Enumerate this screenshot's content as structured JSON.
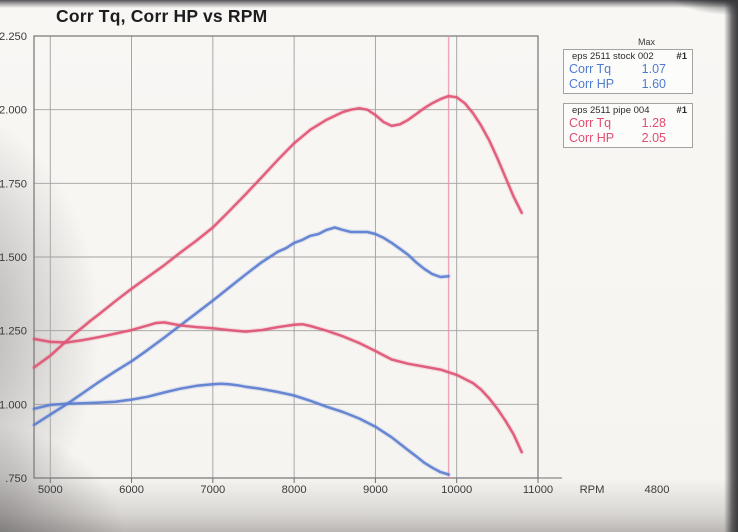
{
  "title": "Corr Tq, Corr HP vs RPM",
  "legend": {
    "max_label": "Max",
    "boxes": [
      {
        "title": "eps 2511 stock 002",
        "run": "#1",
        "color": "#4f7ccf",
        "rows": [
          {
            "label": "Corr Tq",
            "value": "1.07"
          },
          {
            "label": "Corr HP",
            "value": "1.60"
          }
        ]
      },
      {
        "title": "eps 2511 pipe 004",
        "run": "#1",
        "color": "#e04e71",
        "rows": [
          {
            "label": "Corr Tq",
            "value": "1.28"
          },
          {
            "label": "Corr HP",
            "value": "2.05"
          }
        ]
      }
    ]
  },
  "chart_data": {
    "type": "line",
    "title": "Corr Tq, Corr HP vs RPM",
    "xlabel": "RPM",
    "x_start_label": "4800",
    "xlim": [
      4800,
      11000
    ],
    "ylim": [
      0.75,
      2.25
    ],
    "grid": true,
    "grid_color": "#a0a0a0",
    "frame_color": "#7d7d7d",
    "tick_color": "#6f6f6f",
    "marker_rpm": 9900,
    "marker_color": "#e791ad",
    "x_ticks": [
      {
        "value": 5000,
        "label": "5000"
      },
      {
        "value": 6000,
        "label": "6000"
      },
      {
        "value": 7000,
        "label": "7000"
      },
      {
        "value": 8000,
        "label": "8000"
      },
      {
        "value": 9000,
        "label": "9000"
      },
      {
        "value": 10000,
        "label": "10000"
      },
      {
        "value": 11000,
        "label": "11000"
      }
    ],
    "y_ticks": [
      {
        "value": 2.25,
        "label": "2.250"
      },
      {
        "value": 2.0,
        "label": "2.000"
      },
      {
        "value": 1.75,
        "label": "1.750"
      },
      {
        "value": 1.5,
        "label": "1.500"
      },
      {
        "value": 1.25,
        "label": "1.250"
      },
      {
        "value": 1.0,
        "label": "1.000"
      },
      {
        "value": 0.75,
        "label": ".750"
      }
    ],
    "series": [
      {
        "id": "pipe-corr-hp",
        "name": "pipe 004 Corr HP",
        "color": "#e05575",
        "max": 2.05,
        "points": [
          [
            4800,
            1.125
          ],
          [
            4900,
            1.145
          ],
          [
            5000,
            1.165
          ],
          [
            5100,
            1.19
          ],
          [
            5200,
            1.215
          ],
          [
            5300,
            1.24
          ],
          [
            5400,
            1.262
          ],
          [
            5500,
            1.285
          ],
          [
            5600,
            1.306
          ],
          [
            5800,
            1.35
          ],
          [
            6000,
            1.392
          ],
          [
            6200,
            1.432
          ],
          [
            6400,
            1.472
          ],
          [
            6600,
            1.515
          ],
          [
            6800,
            1.556
          ],
          [
            7000,
            1.6
          ],
          [
            7200,
            1.655
          ],
          [
            7400,
            1.712
          ],
          [
            7600,
            1.77
          ],
          [
            7800,
            1.83
          ],
          [
            8000,
            1.886
          ],
          [
            8200,
            1.932
          ],
          [
            8400,
            1.966
          ],
          [
            8600,
            1.992
          ],
          [
            8700,
            2.0
          ],
          [
            8800,
            2.005
          ],
          [
            8900,
            2.0
          ],
          [
            9000,
            1.982
          ],
          [
            9100,
            1.958
          ],
          [
            9200,
            1.945
          ],
          [
            9300,
            1.95
          ],
          [
            9400,
            1.965
          ],
          [
            9500,
            1.985
          ],
          [
            9600,
            2.005
          ],
          [
            9700,
            2.022
          ],
          [
            9800,
            2.036
          ],
          [
            9900,
            2.046
          ],
          [
            10000,
            2.042
          ],
          [
            10100,
            2.022
          ],
          [
            10200,
            1.988
          ],
          [
            10300,
            1.946
          ],
          [
            10400,
            1.896
          ],
          [
            10500,
            1.835
          ],
          [
            10600,
            1.77
          ],
          [
            10700,
            1.705
          ],
          [
            10800,
            1.65
          ]
        ]
      },
      {
        "id": "stock-corr-hp",
        "name": "stock 002 Corr HP",
        "color": "#5b7ed0",
        "max": 1.6,
        "points": [
          [
            4800,
            0.93
          ],
          [
            5000,
            0.965
          ],
          [
            5200,
            1.0
          ],
          [
            5400,
            1.038
          ],
          [
            5600,
            1.076
          ],
          [
            5800,
            1.112
          ],
          [
            6000,
            1.146
          ],
          [
            6200,
            1.185
          ],
          [
            6400,
            1.226
          ],
          [
            6600,
            1.268
          ],
          [
            6800,
            1.31
          ],
          [
            7000,
            1.352
          ],
          [
            7200,
            1.396
          ],
          [
            7400,
            1.44
          ],
          [
            7600,
            1.482
          ],
          [
            7800,
            1.518
          ],
          [
            7900,
            1.53
          ],
          [
            8000,
            1.548
          ],
          [
            8100,
            1.558
          ],
          [
            8200,
            1.572
          ],
          [
            8300,
            1.578
          ],
          [
            8400,
            1.592
          ],
          [
            8500,
            1.6
          ],
          [
            8600,
            1.592
          ],
          [
            8700,
            1.585
          ],
          [
            8900,
            1.585
          ],
          [
            9000,
            1.578
          ],
          [
            9100,
            1.565
          ],
          [
            9200,
            1.548
          ],
          [
            9300,
            1.528
          ],
          [
            9400,
            1.508
          ],
          [
            9500,
            1.482
          ],
          [
            9600,
            1.46
          ],
          [
            9700,
            1.442
          ],
          [
            9800,
            1.432
          ],
          [
            9900,
            1.435
          ]
        ]
      },
      {
        "id": "pipe-corr-tq",
        "name": "pipe 004 Corr Tq",
        "color": "#e05575",
        "max": 1.28,
        "points": [
          [
            4800,
            1.222
          ],
          [
            5000,
            1.212
          ],
          [
            5200,
            1.21
          ],
          [
            5400,
            1.218
          ],
          [
            5600,
            1.228
          ],
          [
            5800,
            1.24
          ],
          [
            6000,
            1.252
          ],
          [
            6200,
            1.268
          ],
          [
            6300,
            1.276
          ],
          [
            6400,
            1.278
          ],
          [
            6500,
            1.273
          ],
          [
            6600,
            1.268
          ],
          [
            6800,
            1.262
          ],
          [
            7000,
            1.258
          ],
          [
            7200,
            1.252
          ],
          [
            7400,
            1.247
          ],
          [
            7600,
            1.252
          ],
          [
            7800,
            1.262
          ],
          [
            8000,
            1.27
          ],
          [
            8100,
            1.272
          ],
          [
            8200,
            1.266
          ],
          [
            8400,
            1.25
          ],
          [
            8600,
            1.231
          ],
          [
            8800,
            1.208
          ],
          [
            9000,
            1.181
          ],
          [
            9200,
            1.152
          ],
          [
            9400,
            1.138
          ],
          [
            9600,
            1.128
          ],
          [
            9800,
            1.118
          ],
          [
            10000,
            1.1
          ],
          [
            10200,
            1.072
          ],
          [
            10300,
            1.05
          ],
          [
            10400,
            1.02
          ],
          [
            10500,
            0.985
          ],
          [
            10600,
            0.944
          ],
          [
            10700,
            0.898
          ],
          [
            10800,
            0.838
          ]
        ]
      },
      {
        "id": "stock-corr-tq",
        "name": "stock 002 Corr Tq",
        "color": "#5b7ed0",
        "max": 1.07,
        "points": [
          [
            4800,
            0.985
          ],
          [
            5000,
            0.998
          ],
          [
            5200,
            1.002
          ],
          [
            5400,
            1.004
          ],
          [
            5600,
            1.006
          ],
          [
            5800,
            1.009
          ],
          [
            6000,
            1.016
          ],
          [
            6200,
            1.026
          ],
          [
            6400,
            1.04
          ],
          [
            6600,
            1.053
          ],
          [
            6800,
            1.063
          ],
          [
            7000,
            1.068
          ],
          [
            7100,
            1.07
          ],
          [
            7200,
            1.068
          ],
          [
            7300,
            1.065
          ],
          [
            7400,
            1.06
          ],
          [
            7600,
            1.052
          ],
          [
            7800,
            1.042
          ],
          [
            8000,
            1.03
          ],
          [
            8200,
            1.012
          ],
          [
            8400,
            0.992
          ],
          [
            8600,
            0.974
          ],
          [
            8800,
            0.952
          ],
          [
            9000,
            0.924
          ],
          [
            9200,
            0.888
          ],
          [
            9400,
            0.845
          ],
          [
            9500,
            0.824
          ],
          [
            9600,
            0.802
          ],
          [
            9700,
            0.785
          ],
          [
            9800,
            0.77
          ],
          [
            9900,
            0.762
          ]
        ]
      }
    ]
  }
}
